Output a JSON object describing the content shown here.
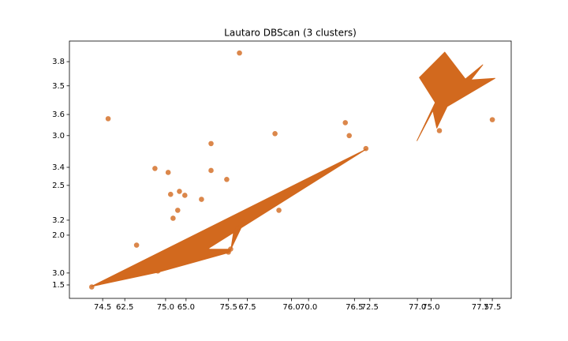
{
  "chart_data": [
    {
      "type": "scatter",
      "title": "Lautaro DBScan (3 clusters)",
      "color": "#d2691e",
      "x": [
        61.82,
        67.18,
        63.73,
        64.27,
        64.37,
        64.73,
        64.95,
        64.47,
        64.66,
        65.63,
        66.02,
        66.02,
        66.66,
        62.98,
        63.85,
        65.15,
        65.34,
        65.85,
        66.73,
        66.82,
        67.4,
        67.66,
        68.63,
        68.79,
        71.5,
        71.66,
        72.34,
        61.15,
        75.34,
        77.5
      ],
      "values": [
        3.17,
        3.83,
        2.67,
        2.63,
        2.41,
        2.44,
        2.4,
        2.17,
        2.25,
        2.36,
        2.92,
        2.65,
        2.56,
        1.9,
        1.64,
        1.79,
        1.87,
        1.86,
        1.83,
        1.86,
        2.16,
        2.2,
        3.02,
        2.25,
        3.13,
        3.0,
        2.87,
        1.48,
        3.05,
        3.16
      ],
      "xlim": [
        60.24,
        78.27
      ],
      "ylim": [
        1.365,
        3.95
      ],
      "xticks": [
        62.5,
        {
          "value": 65.0,
          "label": "65.0"
        },
        67.5,
        {
          "value": 70.0,
          "label": "70.0"
        },
        72.5,
        {
          "value": 75.0,
          "label": "75.0"
        },
        77.5
      ],
      "yticks": [
        1.5,
        {
          "value": 2.0,
          "label": "2.0"
        },
        2.5,
        {
          "value": 3.0,
          "label": "3.0"
        },
        3.5
      ]
    },
    {
      "type": "area",
      "color": "#d2691e",
      "x": [
        74.41,
        76.594,
        75.33,
        75.519,
        75.544,
        75.588,
        75.632,
        75.506,
        74.94,
        null,
        76.997,
        77.142,
        77.016,
        77.217,
        77.381,
        77.519,
        77.425,
        77.616,
        77.236,
        77.154,
        77.123
      ],
      "values": [
        2.949,
        3.469,
        3.09,
        3.09,
        3.167,
        3.182,
        3.203,
        3.078,
        3.003,
        null,
        3.501,
        3.645,
        3.74,
        3.836,
        3.734,
        3.788,
        3.731,
        3.737,
        3.63,
        3.549,
        3.615
      ],
      "xlim": [
        74.236,
        77.745
      ],
      "ylim": [
        2.904,
        3.878
      ],
      "xticks": [
        74.5,
        {
          "value": 75.0,
          "label": "75.0"
        },
        75.5,
        {
          "value": 76.0,
          "label": "76.0"
        },
        76.5,
        {
          "value": 77.0,
          "label": "77.0"
        },
        77.5
      ],
      "yticks": [
        {
          "value": 3.0,
          "label": "3.0"
        },
        3.2,
        3.4,
        3.6,
        3.8
      ]
    }
  ]
}
